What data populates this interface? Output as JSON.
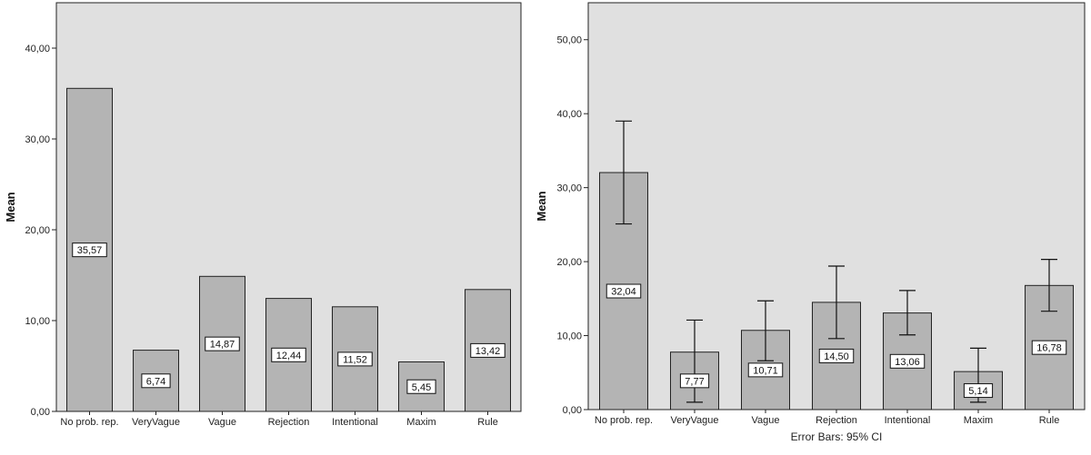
{
  "chart_data": [
    {
      "type": "bar",
      "categories": [
        "No prob. rep.",
        "VeryVague",
        "Vague",
        "Rejection",
        "Intentional",
        "Maxim",
        "Rule"
      ],
      "values": [
        35.57,
        6.74,
        14.87,
        12.44,
        11.52,
        5.45,
        13.42
      ],
      "value_labels": [
        "35,57",
        "6,74",
        "14,87",
        "12,44",
        "11,52",
        "5,45",
        "13,42"
      ],
      "ylabel": "Mean",
      "ylim": [
        0,
        45
      ],
      "yticks": [
        0,
        10,
        20,
        30,
        40
      ],
      "ytick_labels": [
        "0,00",
        "10,00",
        "20,00",
        "30,00",
        "40,00"
      ],
      "note": "",
      "colors": {
        "bar": "#b4b4b4",
        "plot_bg": "#e0e0e0",
        "outline": "#222222"
      }
    },
    {
      "type": "bar",
      "categories": [
        "No prob. rep.",
        "VeryVague",
        "Vague",
        "Rejection",
        "Intentional",
        "Maxim",
        "Rule"
      ],
      "values": [
        32.04,
        7.77,
        10.71,
        14.5,
        13.06,
        5.14,
        16.78
      ],
      "value_labels": [
        "32,04",
        "7,77",
        "10,71",
        "14,50",
        "13,06",
        "5,14",
        "16,78"
      ],
      "error_low": [
        25.1,
        1.0,
        6.6,
        9.6,
        10.1,
        1.0,
        13.3
      ],
      "error_high": [
        39.0,
        12.1,
        14.7,
        19.4,
        16.1,
        8.3,
        20.3
      ],
      "ylabel": "Mean",
      "ylim": [
        0,
        55
      ],
      "yticks": [
        0,
        10,
        20,
        30,
        40,
        50
      ],
      "ytick_labels": [
        "0,00",
        "10,00",
        "20,00",
        "30,00",
        "40,00",
        "50,00"
      ],
      "note": "Error Bars: 95% CI",
      "colors": {
        "bar": "#b4b4b4",
        "plot_bg": "#e0e0e0",
        "outline": "#222222"
      }
    }
  ]
}
